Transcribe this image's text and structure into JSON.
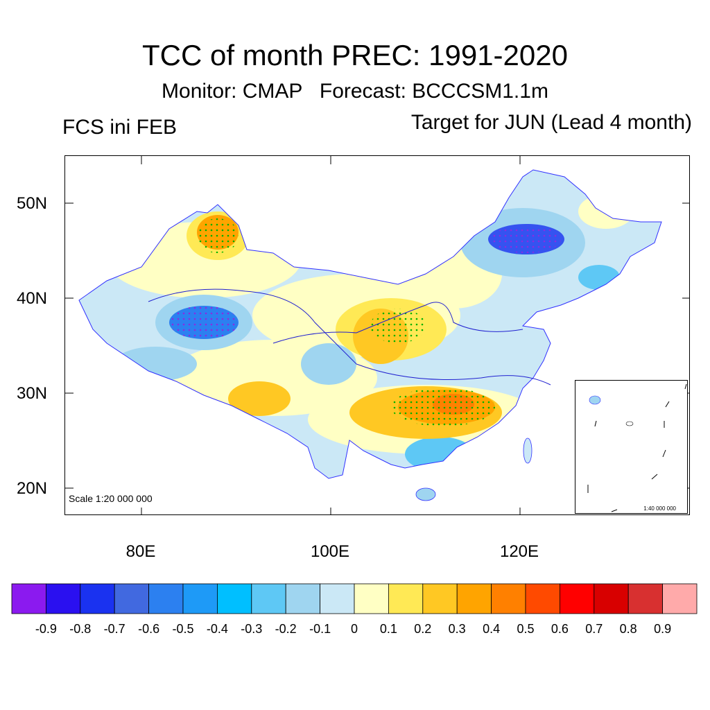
{
  "title": "TCC of month PREC: 1991-2020",
  "subtitle": "Monitor: CMAP   Forecast: BCCCSM1.1m",
  "left_label": "FCS ini FEB",
  "right_label": "Target for JUN (Lead 4 month)",
  "scale_note": "Scale 1:20 000 000",
  "inset_scale_note": "1:40 000 000",
  "lat_labels": [
    "50N",
    "40N",
    "30N",
    "20N"
  ],
  "lon_labels": [
    "80E",
    "100E",
    "120E"
  ],
  "colorbar": {
    "colors": [
      "#8b1aef",
      "#2a10f0",
      "#1a32f0",
      "#4169e0",
      "#2c80f0",
      "#1e9af7",
      "#00bfff",
      "#5ec8f5",
      "#9fd5f0",
      "#cbe8f6",
      "#ffffc4",
      "#ffe955",
      "#ffc823",
      "#ffa400",
      "#ff8000",
      "#ff4a00",
      "#ff0000",
      "#d80000",
      "#d83030",
      "#ffaaaa"
    ],
    "labels": [
      "-0.9",
      "-0.8",
      "-0.7",
      "-0.6",
      "-0.5",
      "-0.4",
      "-0.3",
      "-0.2",
      "-0.1",
      "0",
      "0.1",
      "0.2",
      "0.3",
      "0.4",
      "0.5",
      "0.6",
      "0.7",
      "0.8",
      "0.9"
    ]
  }
}
